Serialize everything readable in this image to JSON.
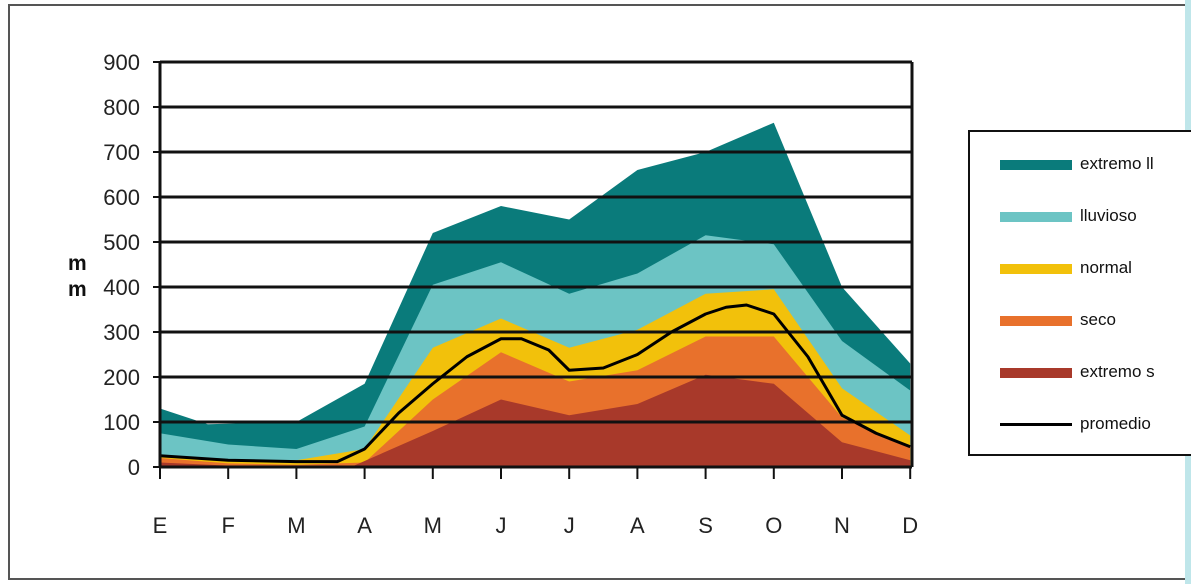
{
  "chart_data": {
    "type": "area",
    "title": "",
    "ylabel": "mm",
    "ylim": [
      0,
      900
    ],
    "yticks": [
      0,
      100,
      200,
      300,
      400,
      500,
      600,
      700,
      800,
      900
    ],
    "categories": [
      "E",
      "F",
      "M",
      "A",
      "M",
      "J",
      "J",
      "A",
      "S",
      "O",
      "N",
      "D"
    ],
    "grid": "horizontal",
    "legend_position": "right",
    "series": [
      {
        "name": "extremo lluvioso",
        "color": "#0a7b7b",
        "x": [
          0,
          0.7,
          2,
          3,
          4,
          5,
          6,
          7,
          8,
          9,
          10,
          11
        ],
        "values": [
          130,
          95,
          100,
          185,
          520,
          580,
          550,
          660,
          700,
          765,
          400,
          230
        ]
      },
      {
        "name": "lluvioso",
        "color": "#6cc4c4",
        "x": [
          0,
          1,
          2,
          3,
          4,
          5,
          6,
          7,
          8,
          9,
          10,
          11
        ],
        "values": [
          75,
          50,
          40,
          90,
          405,
          455,
          385,
          430,
          515,
          495,
          280,
          170
        ]
      },
      {
        "name": "normal",
        "color": "#f2c10b",
        "x": [
          0,
          1,
          2,
          3,
          4,
          5,
          6,
          7,
          8,
          9,
          10,
          11
        ],
        "values": [
          25,
          15,
          15,
          40,
          265,
          330,
          265,
          305,
          385,
          395,
          175,
          70
        ]
      },
      {
        "name": "seco",
        "color": "#e8712c",
        "x": [
          0,
          1,
          2,
          3,
          4,
          5,
          6,
          7,
          8,
          9,
          10,
          11
        ],
        "values": [
          20,
          8,
          5,
          10,
          150,
          255,
          190,
          215,
          290,
          290,
          110,
          45
        ]
      },
      {
        "name": "extremo seco",
        "color": "#a8392a",
        "x": [
          0,
          1,
          2,
          2.8,
          4,
          5,
          6,
          7,
          8,
          9,
          10,
          11
        ],
        "values": [
          10,
          3,
          2,
          0,
          80,
          150,
          115,
          140,
          205,
          185,
          55,
          15
        ]
      },
      {
        "name": "promedio",
        "color": "#000000",
        "line": true,
        "x": [
          0,
          1,
          2,
          2.6,
          3,
          3.5,
          4,
          4.5,
          5,
          5.3,
          5.7,
          6,
          6.5,
          7,
          7.5,
          8,
          8.3,
          8.6,
          9,
          9.5,
          10,
          10.5,
          11
        ],
        "values": [
          25,
          15,
          12,
          12,
          40,
          120,
          185,
          245,
          285,
          285,
          260,
          215,
          220,
          250,
          300,
          340,
          355,
          360,
          340,
          245,
          115,
          75,
          45
        ]
      }
    ]
  },
  "legend": {
    "items": [
      {
        "label": "extremo ll",
        "color": "#0a7b7b",
        "kind": "swatch"
      },
      {
        "label": "lluvioso",
        "color": "#6cc4c4",
        "kind": "swatch"
      },
      {
        "label": "normal",
        "color": "#f2c10b",
        "kind": "swatch"
      },
      {
        "label": "seco",
        "color": "#e8712c",
        "kind": "swatch"
      },
      {
        "label": "extremo s",
        "color": "#a8392a",
        "kind": "swatch"
      },
      {
        "label": "promedio",
        "color": "#000000",
        "kind": "line"
      }
    ]
  }
}
